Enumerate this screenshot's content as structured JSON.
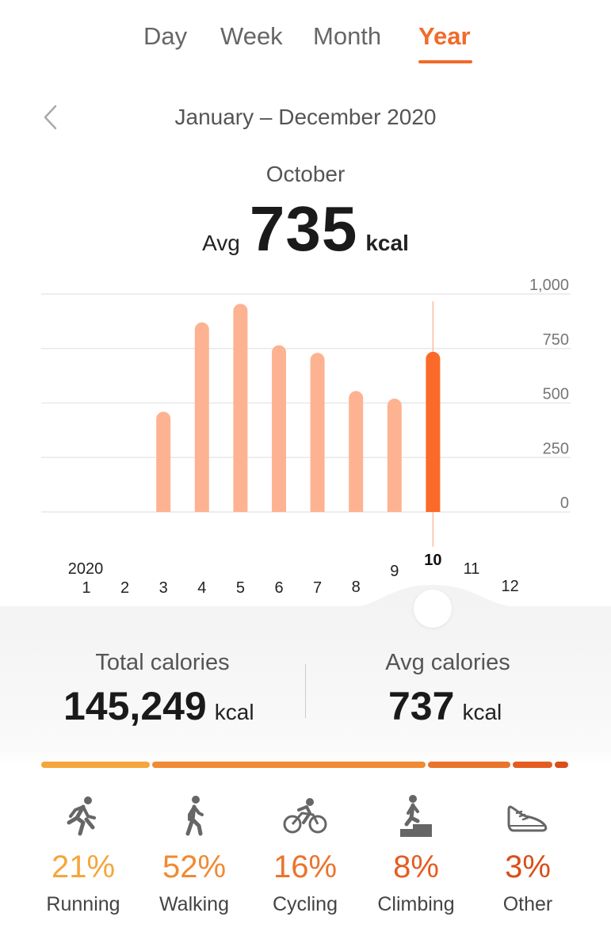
{
  "tabs": [
    {
      "label": "Day",
      "active": false
    },
    {
      "label": "Week",
      "active": false
    },
    {
      "label": "Month",
      "active": false
    },
    {
      "label": "Year",
      "active": true
    }
  ],
  "range_label": "January – December 2020",
  "selected": {
    "month_label": "October",
    "avg_prefix": "Avg",
    "avg_value": "735",
    "unit": "kcal"
  },
  "chart_data": {
    "type": "bar",
    "year_label": "2020",
    "categories": [
      "1",
      "2",
      "3",
      "4",
      "5",
      "6",
      "7",
      "8",
      "9",
      "10",
      "11",
      "12"
    ],
    "values": [
      0,
      0,
      460,
      870,
      955,
      765,
      730,
      555,
      520,
      735,
      0,
      0
    ],
    "selected_index": 9,
    "ylim": [
      0,
      1000
    ],
    "yticks": [
      1000,
      750,
      500,
      250,
      0
    ],
    "ytick_labels": [
      "1,000",
      "750",
      "500",
      "250",
      "0"
    ],
    "grid": true,
    "colors": {
      "bar": "#fdb391",
      "selected": "#fb6a28"
    }
  },
  "stats": {
    "total": {
      "title": "Total calories",
      "value": "145,249",
      "unit": "kcal"
    },
    "avg": {
      "title": "Avg calories",
      "value": "737",
      "unit": "kcal"
    }
  },
  "activities": [
    {
      "name": "Running",
      "pct": "21%",
      "share": 21,
      "icon": "running-icon",
      "color": "#f5a63c"
    },
    {
      "name": "Walking",
      "pct": "52%",
      "share": 52,
      "icon": "walking-icon",
      "color": "#f08a34"
    },
    {
      "name": "Cycling",
      "pct": "16%",
      "share": 16,
      "icon": "cycling-icon",
      "color": "#ea742c"
    },
    {
      "name": "Climbing",
      "pct": "8%",
      "share": 8,
      "icon": "climbing-icon",
      "color": "#e35d22"
    },
    {
      "name": "Other",
      "pct": "3%",
      "share": 3,
      "icon": "shoe-icon",
      "color": "#d94f1a"
    }
  ]
}
